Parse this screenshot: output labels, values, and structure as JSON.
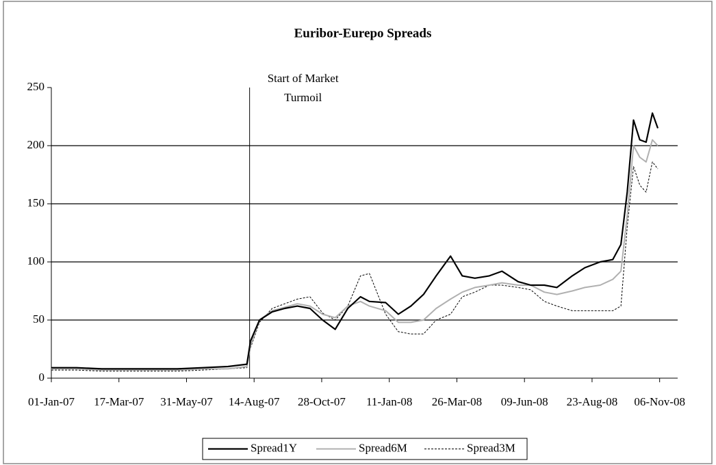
{
  "chart_data": {
    "type": "line",
    "title": "Euribor-Eurepo Spreads",
    "annotation": {
      "x": "2007-08-09",
      "lines": [
        "Start of Market",
        "Turmoil"
      ]
    },
    "x": [
      "2007-01-01",
      "2007-01-29",
      "2007-02-26",
      "2007-03-26",
      "2007-04-23",
      "2007-05-21",
      "2007-06-18",
      "2007-07-16",
      "2007-08-06",
      "2007-08-10",
      "2007-08-20",
      "2007-09-03",
      "2007-09-17",
      "2007-10-01",
      "2007-10-15",
      "2007-10-29",
      "2007-11-12",
      "2007-11-26",
      "2007-12-10",
      "2007-12-20",
      "2008-01-07",
      "2008-01-21",
      "2008-02-04",
      "2008-02-18",
      "2008-03-03",
      "2008-03-19",
      "2008-04-01",
      "2008-04-15",
      "2008-05-01",
      "2008-05-15",
      "2008-06-02",
      "2008-06-16",
      "2008-07-01",
      "2008-07-15",
      "2008-08-01",
      "2008-08-15",
      "2008-09-01",
      "2008-09-15",
      "2008-09-24",
      "2008-10-01",
      "2008-10-08",
      "2008-10-15",
      "2008-10-22",
      "2008-10-29",
      "2008-11-04"
    ],
    "series": [
      {
        "name": "Spread1Y",
        "color": "#000000",
        "style": "solid",
        "width": 2.2,
        "values": [
          9,
          9,
          8,
          8,
          8,
          8,
          9,
          10,
          12,
          32,
          50,
          57,
          60,
          62,
          60,
          50,
          42,
          60,
          70,
          66,
          65,
          55,
          62,
          72,
          88,
          105,
          88,
          86,
          88,
          92,
          83,
          80,
          80,
          78,
          88,
          95,
          100,
          102,
          115,
          160,
          222,
          205,
          203,
          228,
          215
        ]
      },
      {
        "name": "Spread6M",
        "color": "#b0b0b0",
        "style": "solid",
        "width": 2,
        "values": [
          8,
          8,
          7,
          7,
          7,
          7,
          8,
          8,
          10,
          28,
          50,
          58,
          61,
          64,
          62,
          55,
          52,
          62,
          66,
          62,
          58,
          48,
          48,
          50,
          60,
          68,
          74,
          78,
          80,
          82,
          80,
          80,
          74,
          72,
          75,
          78,
          80,
          85,
          92,
          140,
          200,
          190,
          186,
          205,
          200
        ]
      },
      {
        "name": "Spread3M",
        "color": "#000000",
        "style": "dashed",
        "width": 1,
        "values": [
          7,
          7,
          6,
          6,
          6,
          6,
          7,
          8,
          9,
          26,
          48,
          60,
          64,
          68,
          70,
          56,
          50,
          62,
          88,
          90,
          55,
          40,
          38,
          38,
          50,
          55,
          70,
          74,
          80,
          80,
          78,
          76,
          66,
          62,
          58,
          58,
          58,
          58,
          62,
          130,
          182,
          166,
          160,
          186,
          180
        ]
      }
    ],
    "xlim": [
      "2007-01-01",
      "2008-11-26"
    ],
    "xticks": [
      {
        "value": "2007-01-01",
        "label": "01-Jan-07"
      },
      {
        "value": "2007-03-17",
        "label": "17-Mar-07"
      },
      {
        "value": "2007-05-31",
        "label": "31-May-07"
      },
      {
        "value": "2007-08-14",
        "label": "14-Aug-07"
      },
      {
        "value": "2007-10-28",
        "label": "28-Oct-07"
      },
      {
        "value": "2008-01-11",
        "label": "11-Jan-08"
      },
      {
        "value": "2008-03-26",
        "label": "26-Mar-08"
      },
      {
        "value": "2008-06-09",
        "label": "09-Jun-08"
      },
      {
        "value": "2008-08-23",
        "label": "23-Aug-08"
      },
      {
        "value": "2008-11-06",
        "label": "06-Nov-08"
      }
    ],
    "ylim": [
      0,
      250
    ],
    "yticks": [
      0,
      50,
      100,
      150,
      200,
      250
    ],
    "grid": true,
    "legend": "bottom"
  }
}
